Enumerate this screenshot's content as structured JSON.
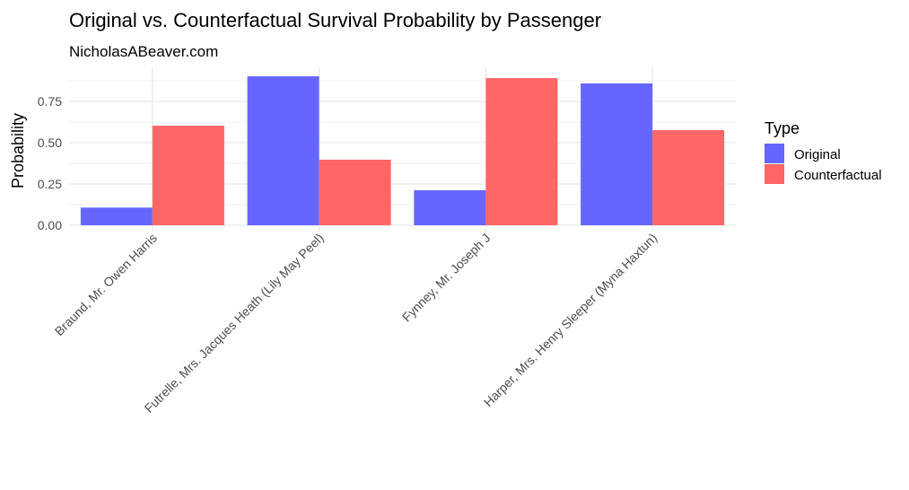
{
  "chart_data": {
    "type": "bar",
    "title": "Original vs. Counterfactual Survival Probability by Passenger",
    "subtitle": "NicholasABeaver.com",
    "xlabel": "",
    "ylabel": "Probability",
    "ylim": [
      0,
      0.95
    ],
    "yticks": [
      "0.00",
      "0.25",
      "0.50",
      "0.75"
    ],
    "grid": true,
    "legend": {
      "title": "Type",
      "placement": "right"
    },
    "categories": [
      "Braund, Mr. Owen Harris",
      "Futrelle, Mrs. Jacques Heath (Lily May Peel)",
      "Fynney, Mr. Joseph J",
      "Harper, Mrs. Henry Sleeper (Myna Haxtun)"
    ],
    "series": [
      {
        "name": "Original",
        "color": "#6666ff",
        "values": [
          0.107,
          0.902,
          0.212,
          0.859
        ]
      },
      {
        "name": "Counterfactual",
        "color": "#ff6666",
        "values": [
          0.603,
          0.397,
          0.891,
          0.576
        ]
      }
    ]
  }
}
